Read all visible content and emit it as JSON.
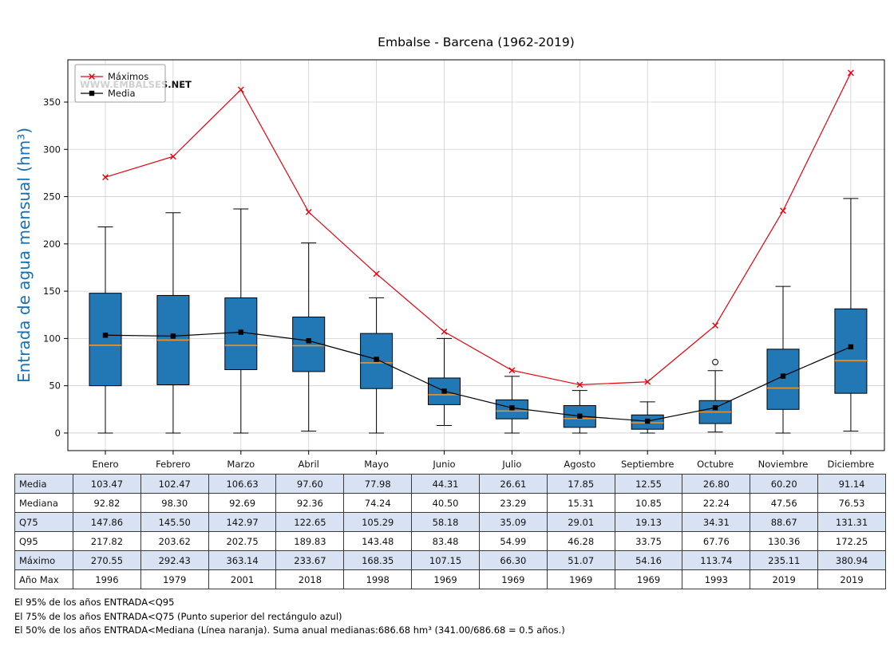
{
  "title": "Embalse - Barcena (1962-2019)",
  "watermark": "WWW.EMBALSES.NET",
  "ylabel": "Entrada de agua mensual (hm³)",
  "legend": {
    "maximos": "Máximos",
    "media": "Media"
  },
  "chart_data": {
    "type": "boxplot+lines",
    "categories": [
      "Enero",
      "Febrero",
      "Marzo",
      "Abril",
      "Mayo",
      "Junio",
      "Julio",
      "Agosto",
      "Septiembre",
      "Octubre",
      "Noviembre",
      "Diciembre"
    ],
    "yticks": [
      0,
      50,
      100,
      150,
      200,
      250,
      300,
      350
    ],
    "ylim": [
      -18.6,
      394.7
    ],
    "grid": true,
    "legend_position": "top-left",
    "series": [
      {
        "name": "Máximos",
        "type": "line",
        "color": "#e8000d",
        "marker": "x",
        "values": [
          270.55,
          292.43,
          363.14,
          233.67,
          168.35,
          107.15,
          66.3,
          51.07,
          54.16,
          113.74,
          235.11,
          380.94
        ]
      },
      {
        "name": "Media",
        "type": "line",
        "color": "#000000",
        "marker": "square",
        "values": [
          103.47,
          102.47,
          106.63,
          97.6,
          77.98,
          44.31,
          26.61,
          17.85,
          12.55,
          26.8,
          60.2,
          91.14
        ]
      }
    ],
    "boxplot": {
      "box_color": "#2278b5",
      "median_color": "#e8932e",
      "q1": [
        50,
        51,
        67,
        65,
        47,
        30,
        15,
        6,
        4,
        10,
        25,
        42
      ],
      "median": [
        92.82,
        98.3,
        92.69,
        92.36,
        74.24,
        40.5,
        23.29,
        15.31,
        10.85,
        22.24,
        47.56,
        76.53
      ],
      "q3": [
        147.86,
        145.5,
        142.97,
        122.65,
        105.29,
        58.18,
        35.09,
        29.01,
        19.13,
        34.31,
        88.67,
        131.31
      ],
      "whisker_low": [
        0,
        0,
        0,
        2,
        0,
        8,
        0,
        0,
        0,
        1,
        0,
        2
      ],
      "whisker_high": [
        218,
        233,
        237,
        201,
        143,
        100,
        60,
        45,
        33,
        66,
        155,
        248
      ],
      "outliers": [
        {
          "month_index": 9,
          "value": 75
        }
      ]
    }
  },
  "table": {
    "row_labels": [
      "Media",
      "Mediana",
      "Q75",
      "Q95",
      "Máximo",
      "Año Max"
    ],
    "rows": [
      [
        "103.47",
        "102.47",
        "106.63",
        "97.60",
        "77.98",
        "44.31",
        "26.61",
        "17.85",
        "12.55",
        "26.80",
        "60.20",
        "91.14"
      ],
      [
        "92.82",
        "98.30",
        "92.69",
        "92.36",
        "74.24",
        "40.50",
        "23.29",
        "15.31",
        "10.85",
        "22.24",
        "47.56",
        "76.53"
      ],
      [
        "147.86",
        "145.50",
        "142.97",
        "122.65",
        "105.29",
        "58.18",
        "35.09",
        "29.01",
        "19.13",
        "34.31",
        "88.67",
        "131.31"
      ],
      [
        "217.82",
        "203.62",
        "202.75",
        "189.83",
        "143.48",
        "83.48",
        "54.99",
        "46.28",
        "33.75",
        "67.76",
        "130.36",
        "172.25"
      ],
      [
        "270.55",
        "292.43",
        "363.14",
        "233.67",
        "168.35",
        "107.15",
        "66.30",
        "51.07",
        "54.16",
        "113.74",
        "235.11",
        "380.94"
      ],
      [
        "1996",
        "1979",
        "2001",
        "2018",
        "1998",
        "1969",
        "1969",
        "1969",
        "1969",
        "1993",
        "2019",
        "2019"
      ]
    ],
    "shaded_rows": [
      0,
      2,
      4
    ],
    "shade_color": "#d9e2f3"
  },
  "footnotes": [
    "El 95% de los años ENTRADA<Q95",
    "El 75% de los años ENTRADA<Q75 (Punto superior del rectángulo azul)",
    "El 50% de los años ENTRADA<Mediana (Línea naranja). Suma anual medianas:686.68 hm³ (341.00/686.68 = 0.5 años.)"
  ]
}
